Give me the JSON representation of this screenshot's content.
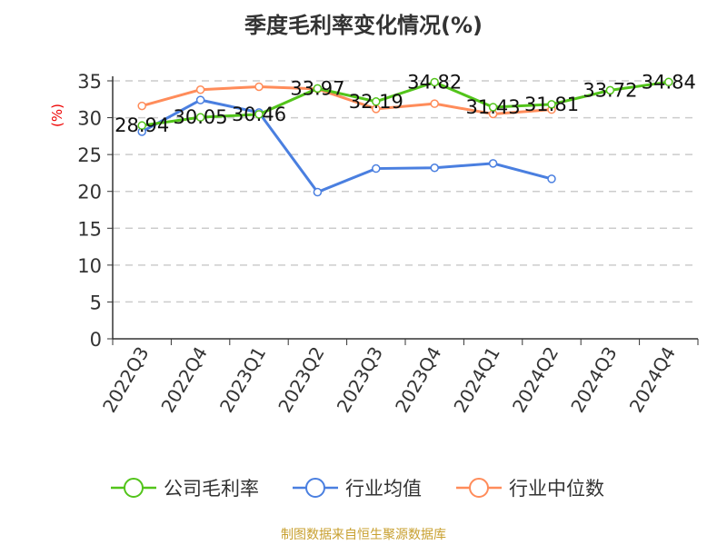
{
  "chart_data": {
    "type": "line",
    "title": "季度毛利率变化情况(%)",
    "ylabel": "(%)",
    "xlabel": "",
    "ylim": [
      0,
      35
    ],
    "yticks": [
      0,
      5,
      10,
      15,
      20,
      25,
      30,
      35
    ],
    "categories": [
      "2022Q3",
      "2022Q4",
      "2023Q1",
      "2023Q2",
      "2023Q3",
      "2023Q4",
      "2024Q1",
      "2024Q2",
      "2024Q3",
      "2024Q4"
    ],
    "series": [
      {
        "name": "公司毛利率",
        "color": "#52c41a",
        "values": [
          28.94,
          30.05,
          30.46,
          33.97,
          32.19,
          34.82,
          31.43,
          31.81,
          33.72,
          34.84
        ],
        "labels": true
      },
      {
        "name": "行业均值",
        "color": "#4a7fe0",
        "values": [
          28.1,
          32.4,
          30.7,
          19.9,
          23.1,
          23.2,
          23.8,
          21.7,
          null,
          null
        ]
      },
      {
        "name": "行业中位数",
        "color": "#ff8c5a",
        "values": [
          31.6,
          33.8,
          34.2,
          33.9,
          31.2,
          31.9,
          30.5,
          31.1,
          null,
          null
        ]
      }
    ],
    "legend": "bottom",
    "grid": true
  },
  "source": "制图数据来自恒生聚源数据库"
}
